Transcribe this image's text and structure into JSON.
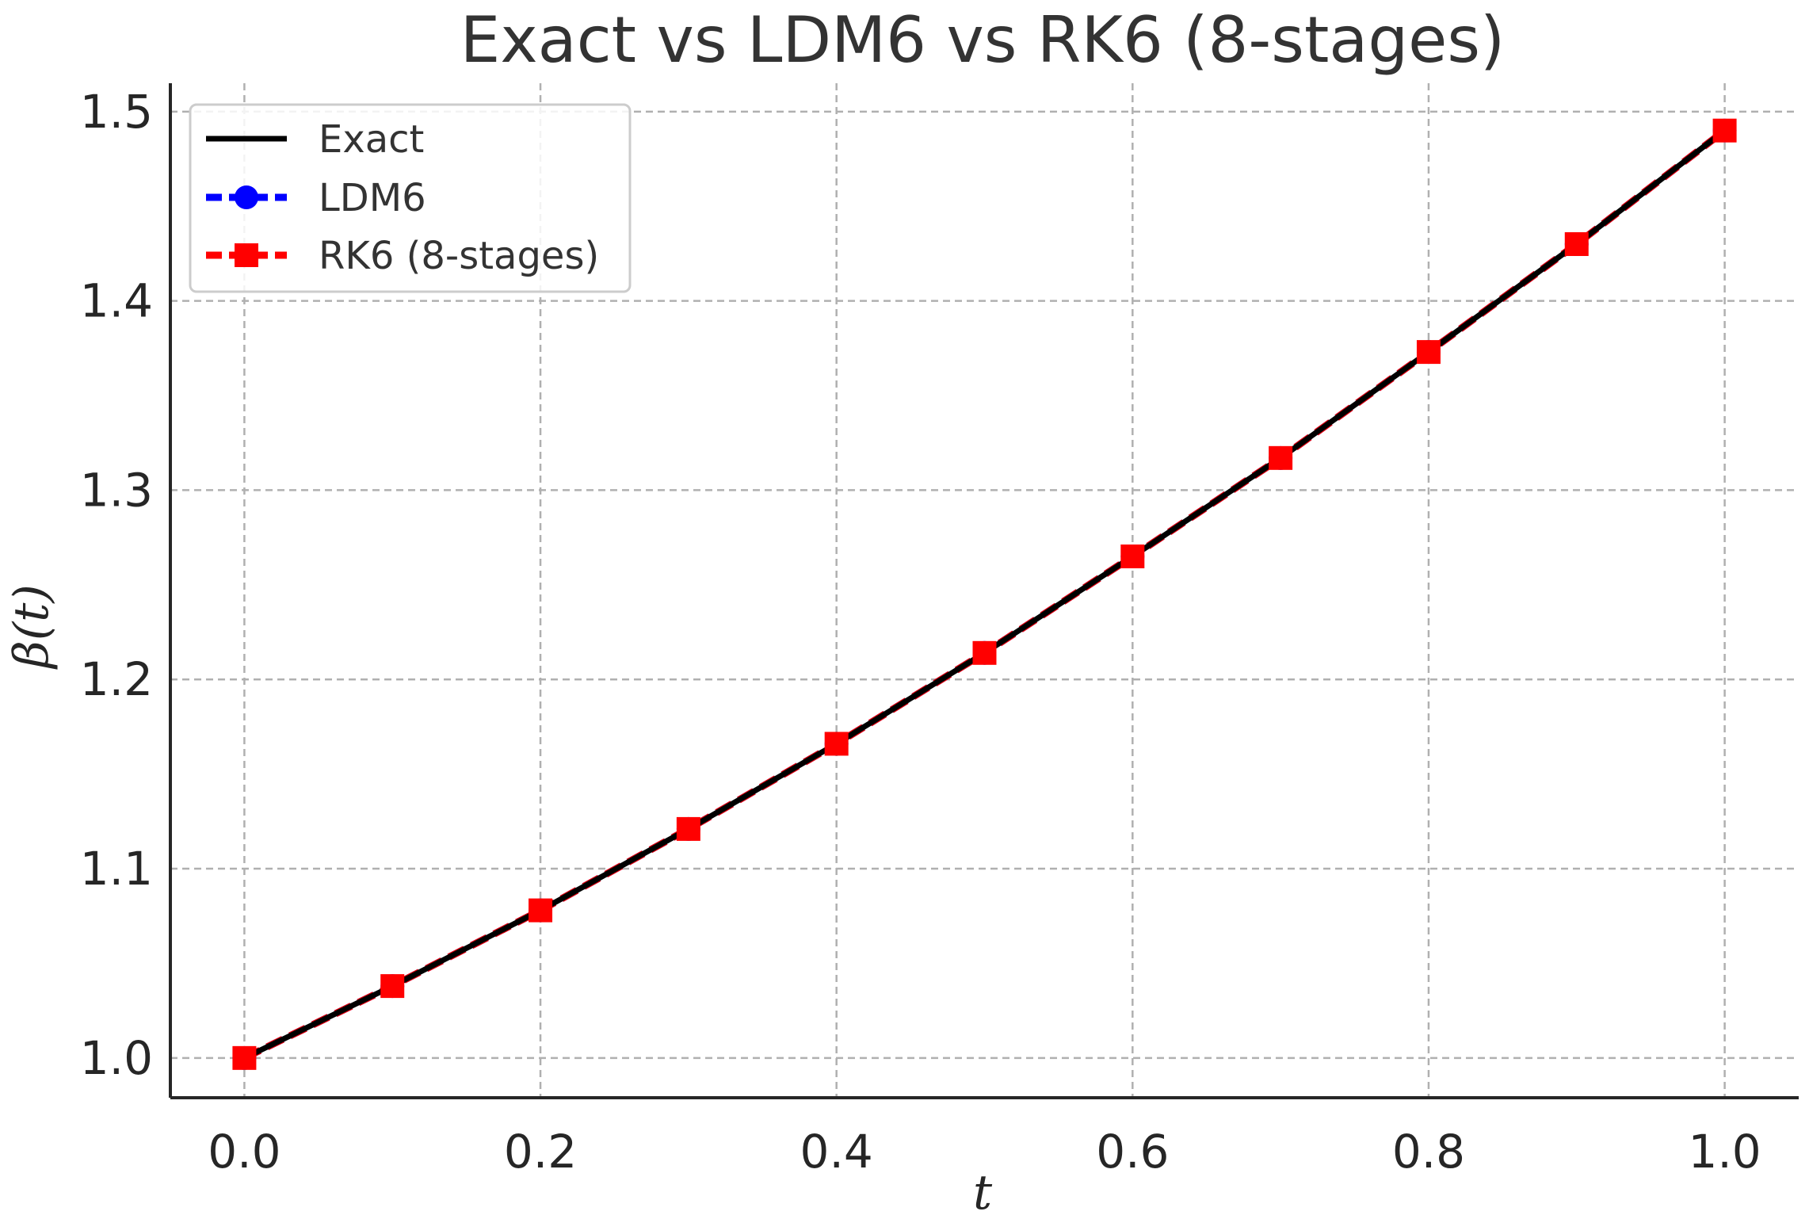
{
  "chart_data": {
    "type": "line",
    "title": "Exact vs LDM6 vs RK6 (8-stages)",
    "xlabel": "t",
    "ylabel": "β(t)",
    "xlim": [
      -0.05,
      1.05
    ],
    "ylim": [
      0.979,
      1.515
    ],
    "xticks": [
      0.0,
      0.2,
      0.4,
      0.6,
      0.8,
      1.0
    ],
    "xtick_labels": [
      "0.0",
      "0.2",
      "0.4",
      "0.6",
      "0.8",
      "1.0"
    ],
    "yticks": [
      1.0,
      1.1,
      1.2,
      1.3,
      1.4,
      1.5
    ],
    "ytick_labels": [
      "1.0",
      "1.1",
      "1.2",
      "1.3",
      "1.4",
      "1.5"
    ],
    "grid": true,
    "legend_position": "top-left",
    "x": [
      0.0,
      0.1,
      0.2,
      0.3,
      0.4,
      0.5,
      0.6,
      0.7,
      0.8,
      0.9,
      1.0
    ],
    "series": [
      {
        "name": "Exact",
        "style": "solid",
        "marker": "none",
        "color": "#000000",
        "values": [
          1.0,
          1.038,
          1.078,
          1.121,
          1.166,
          1.214,
          1.265,
          1.317,
          1.373,
          1.43,
          1.49
        ]
      },
      {
        "name": "LDM6",
        "style": "dashed",
        "marker": "circle",
        "color": "#0000ff",
        "values": [
          1.0,
          1.038,
          1.078,
          1.121,
          1.166,
          1.214,
          1.265,
          1.317,
          1.373,
          1.43,
          1.49
        ]
      },
      {
        "name": "RK6 (8-stages)",
        "style": "dashed",
        "marker": "square",
        "color": "#ff0000",
        "values": [
          1.0,
          1.038,
          1.078,
          1.121,
          1.166,
          1.214,
          1.265,
          1.317,
          1.373,
          1.43,
          1.49
        ]
      }
    ],
    "colors": {
      "grid": "#b0b0b0",
      "axis": "#262626",
      "legend_border": "#cccccc"
    }
  }
}
